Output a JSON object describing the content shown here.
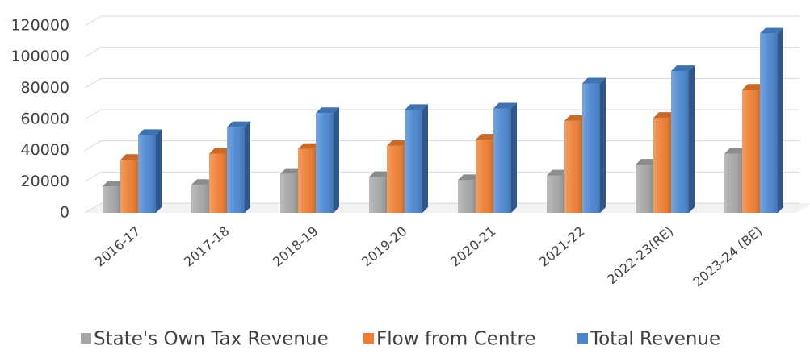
{
  "chart_data": {
    "type": "bar3d",
    "categories": [
      "2016-17",
      "2017-18",
      "2018-19",
      "2019-20",
      "2020-21",
      "2021-22",
      "2022-23(RE)",
      "2023-24 (BE)"
    ],
    "series": [
      {
        "name": "State's Own Tax Revenue",
        "color": "#a5a5a5",
        "values": [
          17000,
          18000,
          25000,
          23000,
          21000,
          24000,
          31000,
          38000
        ]
      },
      {
        "name": "Flow from Centre",
        "color": "#ed7d31",
        "values": [
          34000,
          38000,
          41000,
          43000,
          47000,
          59000,
          61000,
          79000
        ]
      },
      {
        "name": "Total Revenue",
        "color": "#4a86d0",
        "values": [
          50000,
          55000,
          64000,
          66000,
          67000,
          83000,
          91000,
          115000
        ]
      }
    ],
    "ylim": [
      0,
      120000
    ],
    "yticks": [
      0,
      20000,
      40000,
      60000,
      80000,
      100000,
      120000
    ],
    "grid": true,
    "legend": "bottom"
  }
}
